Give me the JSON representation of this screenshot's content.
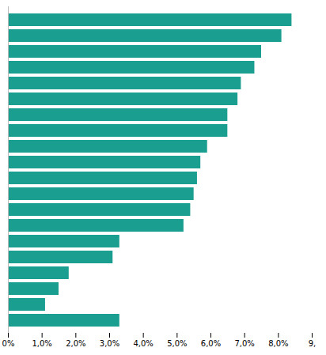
{
  "chart_data": {
    "type": "bar",
    "orientation": "horizontal",
    "categories": [
      null,
      null,
      null,
      null,
      null,
      null,
      null,
      null,
      null,
      null,
      null,
      null,
      null,
      null,
      null,
      null,
      null,
      null,
      null,
      null
    ],
    "values": [
      8.4,
      8.1,
      7.5,
      7.3,
      6.9,
      6.8,
      6.5,
      6.5,
      5.9,
      5.7,
      5.6,
      5.5,
      5.4,
      5.2,
      3.3,
      3.1,
      1.8,
      1.5,
      1.1,
      3.3
    ],
    "color": "#1a9e8f",
    "xlim": [
      0,
      9.0
    ],
    "xticks": [
      {
        "value": 0,
        "label": "0%"
      },
      {
        "value": 1.0,
        "label": "1,0%"
      },
      {
        "value": 2.0,
        "label": "2,0%"
      },
      {
        "value": 3.0,
        "label": "3,0%"
      },
      {
        "value": 4.0,
        "label": "4,0%"
      },
      {
        "value": 5.0,
        "label": "5,0%"
      },
      {
        "value": 6.0,
        "label": "6,0%"
      },
      {
        "value": 7.0,
        "label": "7,0%"
      },
      {
        "value": 8.0,
        "label": "8,0%"
      },
      {
        "value": 9.0,
        "label": "9,"
      }
    ],
    "grid": false,
    "tick_labels": "x"
  }
}
